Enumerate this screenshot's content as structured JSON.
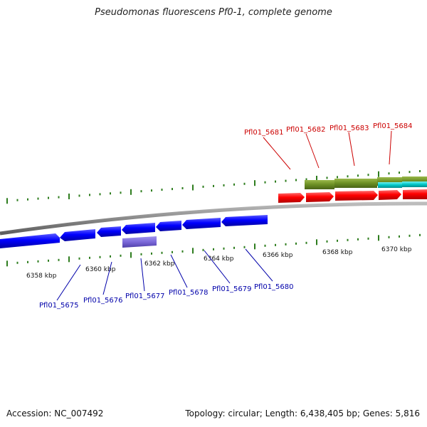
{
  "title": "Pseudomonas fluorescens Pf0-1, complete genome",
  "footer": {
    "accession": "Accession: NC_007492",
    "summary": "Topology: circular; Length: 6,438,405 bp; Genes: 5,816"
  },
  "colors": {
    "backbone": "#8a8a8a",
    "tick": "#2e7d1e",
    "forward_gene": "#ff0000",
    "reverse_gene": "#0000ff",
    "olive_track": "#6b8e23",
    "cyan_track": "#00c8c8",
    "purple_feature": "#7b68d9",
    "forward_label": "#cc0000",
    "reverse_label": "#0000aa"
  },
  "scale": {
    "unit": "kbp",
    "ticks_kbp": [
      6358,
      6360,
      6362,
      6364,
      6366,
      6368,
      6370
    ],
    "tick_labels": [
      "6358 kbp",
      "6360 kbp",
      "6362 kbp",
      "6364 kbp",
      "6366 kbp",
      "6368 kbp",
      "6370 kbp"
    ]
  },
  "genes": {
    "forward": [
      "Pfl01_5681",
      "Pfl01_5682",
      "Pfl01_5683",
      "Pfl01_5684"
    ],
    "reverse": [
      "Pfl01_5675",
      "Pfl01_5676",
      "Pfl01_5677",
      "Pfl01_5678",
      "Pfl01_5679",
      "Pfl01_5680"
    ]
  }
}
